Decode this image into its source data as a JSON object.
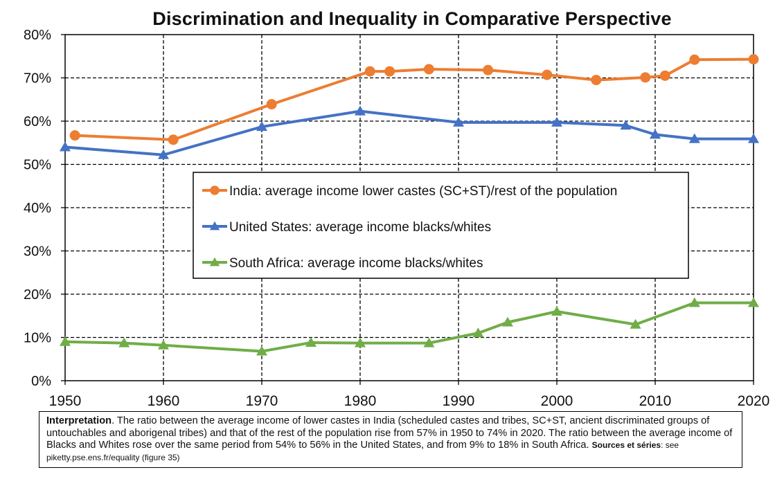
{
  "chart_data": {
    "type": "line",
    "title": "Discrimination and Inequality in Comparative Perspective",
    "xlabel": "",
    "ylabel": "",
    "xlim": [
      1950,
      2020
    ],
    "ylim": [
      0,
      0.8
    ],
    "x_ticks": [
      "1950",
      "1960",
      "1970",
      "1980",
      "1990",
      "2000",
      "2010",
      "2020"
    ],
    "y_ticks": [
      "0%",
      "10%",
      "20%",
      "30%",
      "40%",
      "50%",
      "60%",
      "70%",
      "80%"
    ],
    "grid": true,
    "legend_position": "center",
    "series": [
      {
        "name": "India: average income lower castes (SC+ST)/rest of the population",
        "color": "#ED7D31",
        "marker": "circle",
        "points": [
          [
            1951,
            0.567
          ],
          [
            1961,
            0.557
          ],
          [
            1971,
            0.639
          ],
          [
            1981,
            0.715
          ],
          [
            1983,
            0.715
          ],
          [
            1987,
            0.72
          ],
          [
            1993,
            0.718
          ],
          [
            1999,
            0.707
          ],
          [
            2004,
            0.695
          ],
          [
            2009,
            0.701
          ],
          [
            2011,
            0.705
          ],
          [
            2014,
            0.742
          ],
          [
            2020,
            0.743
          ]
        ]
      },
      {
        "name": "United States: average income blacks/whites",
        "color": "#4472C4",
        "marker": "triangle",
        "points": [
          [
            1950,
            0.54
          ],
          [
            1960,
            0.522
          ],
          [
            1970,
            0.587
          ],
          [
            1980,
            0.623
          ],
          [
            1990,
            0.597
          ],
          [
            2000,
            0.597
          ],
          [
            2007,
            0.59
          ],
          [
            2010,
            0.569
          ],
          [
            2014,
            0.559
          ],
          [
            2020,
            0.559
          ]
        ]
      },
      {
        "name": "South Africa: average income blacks/whites",
        "color": "#70AD47",
        "marker": "triangle",
        "points": [
          [
            1950,
            0.09
          ],
          [
            1956,
            0.087
          ],
          [
            1960,
            0.082
          ],
          [
            1970,
            0.068
          ],
          [
            1975,
            0.088
          ],
          [
            1980,
            0.087
          ],
          [
            1987,
            0.087
          ],
          [
            1992,
            0.11
          ],
          [
            1995,
            0.135
          ],
          [
            2000,
            0.16
          ],
          [
            2008,
            0.13
          ],
          [
            2014,
            0.18
          ],
          [
            2020,
            0.18
          ]
        ]
      }
    ]
  },
  "note": {
    "lead": "Interpretation",
    "text": ". The ratio between the average income of lower castes in India (scheduled castes and tribes, SC+ST, ancient discriminated groups of untouchables and aborigenal tribes) and that of the rest of the population rise from 57% in 1950 to 74% in 2020. The ratio between the average income of Blacks and Whites rose over the same period from 54% to 56% in the United States, and from 9% to 18% in South Africa. ",
    "sources_label": "Sources et séries",
    "sources_text": ": see piketty.pse.ens.fr/equality (figure 35)"
  }
}
